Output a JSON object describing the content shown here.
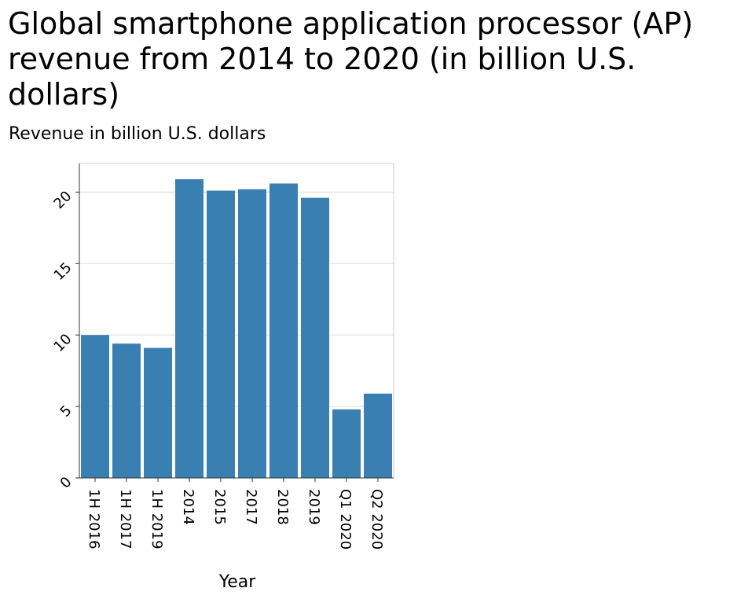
{
  "chart_data": {
    "type": "bar",
    "title": "Global smartphone application processor (AP) revenue from 2014 to 2020 (in billion U.S. dollars)",
    "ylabel": "Revenue in billion U.S. dollars",
    "xlabel": "Year",
    "categories": [
      "1H 2016",
      "1H 2017",
      "1H 2019",
      "2014",
      "2015",
      "2017",
      "2018",
      "2019",
      "Q1 2020",
      "Q2 2020"
    ],
    "values": [
      10.0,
      9.4,
      9.1,
      20.9,
      20.1,
      20.2,
      20.6,
      19.6,
      4.8,
      5.9
    ],
    "ylim": [
      0,
      22
    ],
    "yticks": [
      0,
      5,
      10,
      15,
      20
    ],
    "grid": true,
    "bar_color": "#3a7fb1"
  }
}
